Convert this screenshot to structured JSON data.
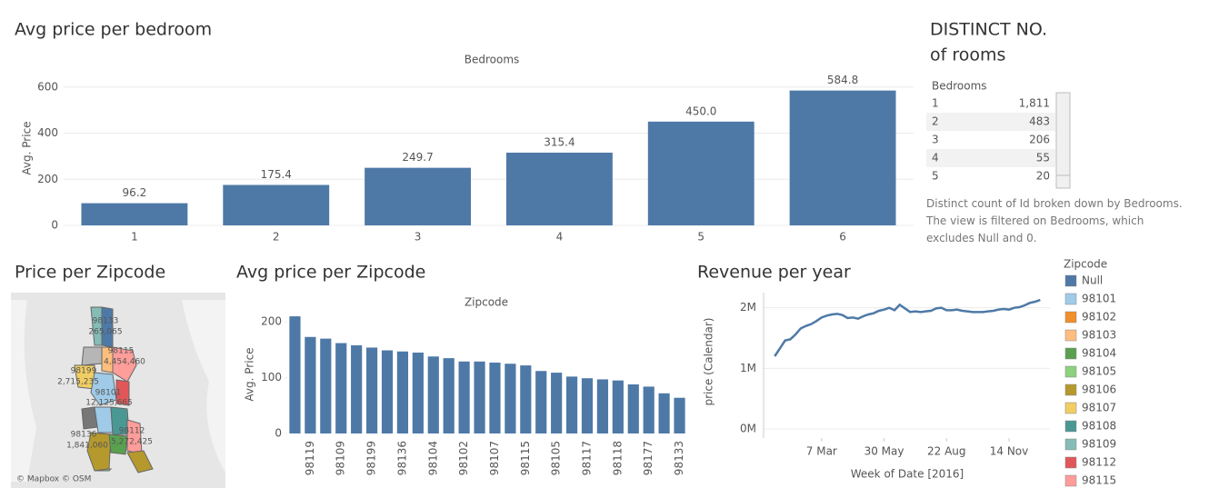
{
  "chart_data": [
    {
      "type": "bar",
      "title": "Avg price per bedroom",
      "header": "Bedrooms",
      "y_label": "Avg. Price",
      "categories": [
        "1",
        "2",
        "3",
        "4",
        "5",
        "6"
      ],
      "values": [
        96.2,
        175.4,
        249.7,
        315.4,
        450.0,
        584.8
      ],
      "value_labels": [
        "96.2",
        "175.4",
        "249.7",
        "315.4",
        "450.0",
        "584.8"
      ],
      "color": "#4e79a7",
      "ylim": [
        0,
        670
      ],
      "yticks": [
        0,
        200,
        400,
        600
      ],
      "grid": true
    },
    {
      "type": "bar",
      "title": "Avg price per Zipcode",
      "header": "Zipcode",
      "y_label": "Avg. Price",
      "categories": [
        null,
        "98119",
        null,
        "98109",
        null,
        "98199",
        null,
        "98136",
        null,
        "98104",
        null,
        "98102",
        null,
        "98107",
        null,
        "98115",
        null,
        "98105",
        null,
        "98117",
        null,
        "98118",
        null,
        "98177",
        null,
        "98133"
      ],
      "values": [
        210,
        173,
        170,
        162,
        158,
        154,
        149,
        147,
        145,
        138,
        135,
        129,
        129,
        127,
        125,
        122,
        112,
        109,
        102,
        99,
        97,
        95,
        88,
        84,
        72,
        64
      ],
      "color": "#4e79a7",
      "ylim": [
        0,
        215
      ],
      "yticks": [
        0,
        100,
        200
      ],
      "grid": false
    },
    {
      "type": "line",
      "title": "Revenue per year",
      "x_label": "Week of Date [2016]",
      "y_label": "price (Calendar)",
      "x": [
        "2016-01-04",
        "2016-01-11",
        "2016-01-18",
        "2016-01-25",
        "2016-02-01",
        "2016-02-08",
        "2016-02-15",
        "2016-02-22",
        "2016-02-29",
        "2016-03-07",
        "2016-03-14",
        "2016-03-21",
        "2016-03-28",
        "2016-04-04",
        "2016-04-11",
        "2016-04-18",
        "2016-04-25",
        "2016-05-02",
        "2016-05-09",
        "2016-05-16",
        "2016-05-23",
        "2016-05-30",
        "2016-06-06",
        "2016-06-13",
        "2016-06-20",
        "2016-06-27",
        "2016-07-04",
        "2016-07-11",
        "2016-07-18",
        "2016-07-25",
        "2016-08-01",
        "2016-08-08",
        "2016-08-15",
        "2016-08-22",
        "2016-08-29",
        "2016-09-05",
        "2016-09-12",
        "2016-09-19",
        "2016-09-26",
        "2016-10-03",
        "2016-10-10",
        "2016-10-17",
        "2016-10-24",
        "2016-10-31",
        "2016-11-07",
        "2016-11-14",
        "2016-11-21",
        "2016-11-28",
        "2016-12-05",
        "2016-12-12",
        "2016-12-19",
        "2016-12-26"
      ],
      "series": [
        {
          "name": "price (Calendar)",
          "color": "#4e79a7",
          "values": [
            1200000,
            1330000,
            1460000,
            1480000,
            1560000,
            1660000,
            1700000,
            1730000,
            1780000,
            1840000,
            1870000,
            1890000,
            1900000,
            1880000,
            1830000,
            1840000,
            1820000,
            1860000,
            1890000,
            1910000,
            1950000,
            1970000,
            2000000,
            1960000,
            2050000,
            1990000,
            1930000,
            1940000,
            1930000,
            1940000,
            1950000,
            1990000,
            2000000,
            1960000,
            1960000,
            1970000,
            1950000,
            1940000,
            1930000,
            1930000,
            1930000,
            1940000,
            1950000,
            1970000,
            1980000,
            1970000,
            2000000,
            2010000,
            2040000,
            2080000,
            2100000,
            2130000
          ]
        }
      ],
      "xlim": [
        "2015-12-20",
        "2017-01-08"
      ],
      "xticks": [
        {
          "value": "2016-03-07",
          "label": "7 Mar"
        },
        {
          "value": "2016-05-30",
          "label": "30 May"
        },
        {
          "value": "2016-08-22",
          "label": "22 Aug"
        },
        {
          "value": "2016-11-14",
          "label": "14 Nov"
        }
      ],
      "ylim": [
        -150000,
        2250000
      ],
      "yticks": [
        {
          "value": 0,
          "label": "0M"
        },
        {
          "value": 1000000,
          "label": "1M"
        },
        {
          "value": 2000000,
          "label": "2M"
        }
      ],
      "grid": true
    }
  ],
  "legend": {
    "title": "Zipcode",
    "items": [
      {
        "name": "Null",
        "color": "#4e79a7"
      },
      {
        "name": "98101",
        "color": "#a0cbe8"
      },
      {
        "name": "98102",
        "color": "#f28e2b"
      },
      {
        "name": "98103",
        "color": "#ffbe7d"
      },
      {
        "name": "98104",
        "color": "#59a14f"
      },
      {
        "name": "98105",
        "color": "#8cd17d"
      },
      {
        "name": "98106",
        "color": "#b6992d"
      },
      {
        "name": "98107",
        "color": "#f1ce63"
      },
      {
        "name": "98108",
        "color": "#499894"
      },
      {
        "name": "98109",
        "color": "#86bcb6"
      },
      {
        "name": "98112",
        "color": "#e15759"
      },
      {
        "name": "98115",
        "color": "#ff9d9a"
      }
    ]
  },
  "table": {
    "title": [
      "DISTINCT NO.",
      "of rooms"
    ],
    "header": "Bedrooms",
    "rows": [
      [
        "1",
        "1,811"
      ],
      [
        "2",
        "483"
      ],
      [
        "3",
        "206"
      ],
      [
        "4",
        "55"
      ],
      [
        "5",
        "20"
      ]
    ],
    "caption": "Distinct count of Id broken down by Bedrooms. The view is filtered on Bedrooms, which excludes Null and 0."
  },
  "map": {
    "title": "Price per Zipcode",
    "attribution": "© Mapbox © OSM",
    "regions": [
      {
        "zipcode": "98133",
        "price": "265,065"
      },
      {
        "zipcode": "98115",
        "price": "4,454,460"
      },
      {
        "zipcode": "98199",
        "price": "2,715,235"
      },
      {
        "zipcode": "98101",
        "price": "12,125,665"
      },
      {
        "zipcode": "98136",
        "price": "1,841,060"
      },
      {
        "zipcode": "98112",
        "price": "5,272,425"
      }
    ]
  }
}
